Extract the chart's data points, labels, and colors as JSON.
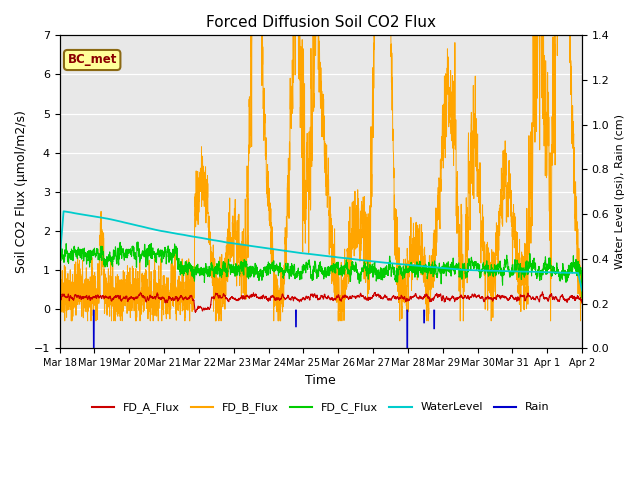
{
  "title": "Forced Diffusion Soil CO2 Flux",
  "ylabel_left": "Soil CO2 Flux (μmol/m2/s)",
  "ylabel_right": "Water Level (psi), Rain (cm)",
  "xlabel": "Time",
  "ylim_left": [
    -1.0,
    7.0
  ],
  "ylim_right": [
    0.0,
    1.4
  ],
  "plot_bg_color": "#e8e8e8",
  "fig_bg_color": "#ffffff",
  "annotation_text": "BC_met",
  "annotation_bg": "#ffff99",
  "annotation_border": "#8B6914",
  "colors": {
    "FD_A_Flux": "#cc0000",
    "FD_B_Flux": "#ffa500",
    "FD_C_Flux": "#00cc00",
    "WaterLevel": "#00cccc",
    "Rain": "#0000cc"
  },
  "xtick_labels": [
    "Mar 18",
    "Mar 19",
    "Mar 20",
    "Mar 21",
    "Mar 22",
    "Mar 23",
    "Mar 24",
    "Mar 25",
    "Mar 26",
    "Mar 27",
    "Mar 28",
    "Mar 29",
    "Mar 30",
    "Mar 31",
    "Apr 1",
    "Apr 2"
  ],
  "yticks_left": [
    -1.0,
    0.0,
    1.0,
    2.0,
    3.0,
    4.0,
    5.0,
    6.0,
    7.0
  ],
  "yticks_right": [
    0.0,
    0.2,
    0.4,
    0.6,
    0.8,
    1.0,
    1.2,
    1.4
  ],
  "rain_days": [
    1.0,
    7.0,
    10.3,
    10.8,
    11.1
  ],
  "rain_heights": [
    -1.0,
    -0.45,
    -1.18,
    -0.35,
    -0.5
  ]
}
